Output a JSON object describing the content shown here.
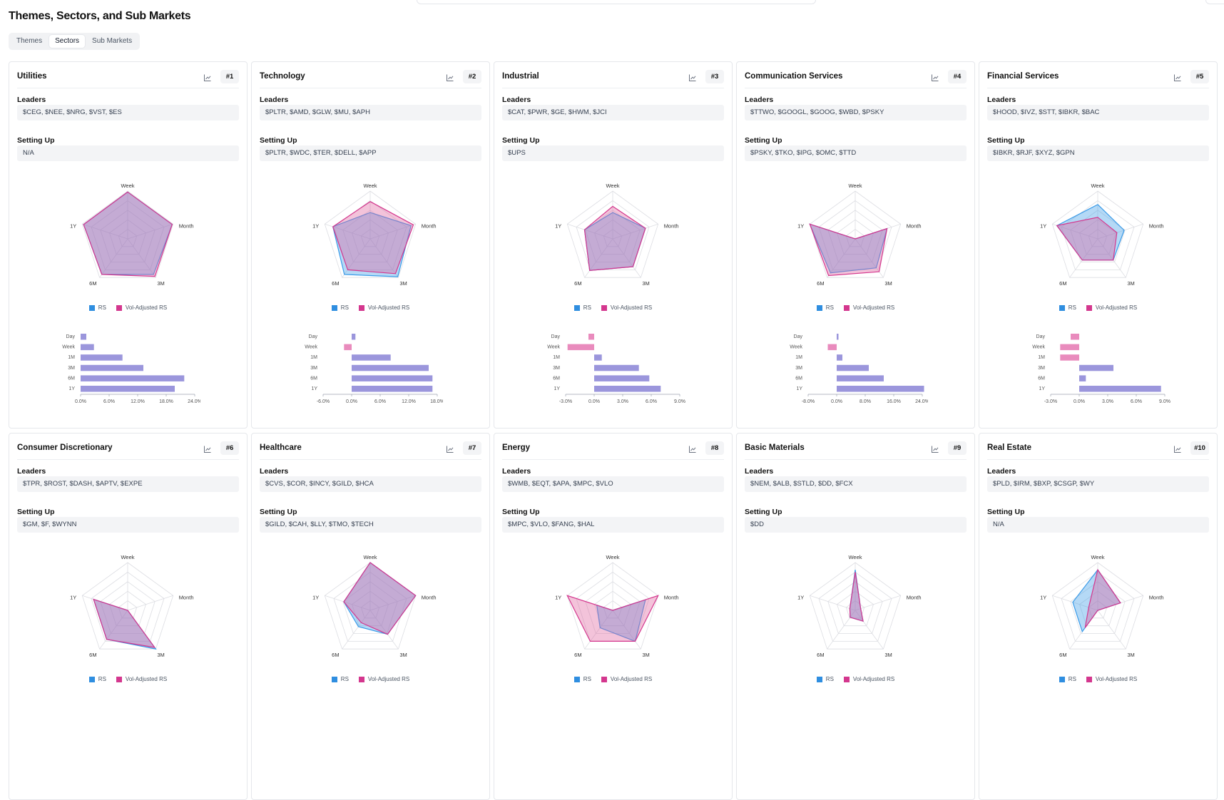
{
  "page": {
    "title": "Themes, Sectors, and Sub Markets",
    "tabs": [
      {
        "label": "Themes",
        "active": false
      },
      {
        "label": "Sectors",
        "active": true
      },
      {
        "label": "Sub Markets",
        "active": false
      }
    ]
  },
  "labels": {
    "leaders": "Leaders",
    "setting_up": "Setting Up"
  },
  "legend": {
    "rs": "RS",
    "vol_adjusted_rs": "Vol-Adjusted RS"
  },
  "colors": {
    "rs": "#2f8ee0",
    "vol_adjusted_rs": "#d4378e",
    "bar_positive": "#9b96dc",
    "bar_negative": "#e98bbd"
  },
  "icons": {
    "chart_toggle": "line-chart-icon"
  },
  "chart_data": {
    "type": "radar+bar",
    "radar_axes": [
      "Week",
      "Month",
      "3M",
      "6M",
      "1Y"
    ],
    "bar_categories": [
      "Day",
      "Week",
      "1M",
      "3M",
      "6M",
      "1Y"
    ],
    "sectors": [
      {
        "name": "Utilities",
        "rank": "#1",
        "leaders": "$CEG, $NEE, $NRG, $VST, $ES",
        "setting_up": "N/A",
        "rs": [
          0.98,
          0.98,
          0.92,
          0.92,
          0.97
        ],
        "vol": [
          0.98,
          0.98,
          0.97,
          0.92,
          0.97
        ],
        "bars": [
          1.2,
          2.8,
          8.8,
          13.2,
          21.8,
          19.8
        ],
        "ticks": [
          "0.0%",
          "6.0%",
          "12.0%",
          "18.0%",
          "24.0%"
        ],
        "xmin": 0,
        "xmax": 24
      },
      {
        "name": "Technology",
        "rank": "#2",
        "leaders": "$PLTR, $AMD, $GLW, $MU, $APH",
        "setting_up": "$PLTR, $WDC, $TER, $DELL, $APP",
        "rs": [
          0.55,
          0.9,
          0.98,
          0.92,
          0.82
        ],
        "vol": [
          0.78,
          0.95,
          0.9,
          0.8,
          0.82
        ],
        "bars": [
          0.8,
          -1.6,
          8.2,
          16.2,
          17.0,
          17.0
        ],
        "ticks": [
          "-6.0%",
          "0.0%",
          "6.0%",
          "12.0%",
          "18.0%"
        ],
        "xmin": -6,
        "xmax": 18
      },
      {
        "name": "Industrial",
        "rank": "#3",
        "leaders": "$CAT, $PWR, $GE, $HWM, $JCI",
        "setting_up": "$UPS",
        "rs": [
          0.55,
          0.72,
          0.72,
          0.82,
          0.62
        ],
        "vol": [
          0.68,
          0.72,
          0.72,
          0.82,
          0.62
        ],
        "bars": [
          -0.6,
          -2.8,
          0.8,
          4.7,
          5.8,
          7.0
        ],
        "ticks": [
          "-3.0%",
          "0.0%",
          "3.0%",
          "6.0%",
          "9.0%"
        ],
        "xmin": -3,
        "xmax": 9
      },
      {
        "name": "Communication Services",
        "rank": "#4",
        "leaders": "$TTWO, $GOOGL, $GOOG, $WBD, $PSKY",
        "setting_up": "$PSKY, $TKO, $IPG, $OMC, $TTD",
        "rs": [
          0.0,
          0.7,
          0.75,
          0.88,
          1.0
        ],
        "vol": [
          0.0,
          0.7,
          0.85,
          0.95,
          1.0
        ],
        "bars": [
          0.5,
          -2.5,
          1.6,
          9.0,
          13.2,
          24.5
        ],
        "ticks": [
          "-8.0%",
          "0.0%",
          "8.0%",
          "16.0%",
          "24.0%"
        ],
        "xmin": -8,
        "xmax": 24
      },
      {
        "name": "Financial Services",
        "rank": "#5",
        "leaders": "$HOOD, $IVZ, $STT, $IBKR, $BAC",
        "setting_up": "$IBKR, $RJF, $XYZ, $GPN",
        "rs": [
          0.72,
          0.58,
          0.55,
          0.55,
          0.9
        ],
        "vol": [
          0.45,
          0.42,
          0.55,
          0.55,
          0.9
        ],
        "bars": [
          -0.9,
          -2.0,
          -2.0,
          3.6,
          0.7,
          8.6
        ],
        "ticks": [
          "-3.0%",
          "0.0%",
          "3.0%",
          "6.0%",
          "9.0%"
        ],
        "xmin": -3,
        "xmax": 9
      },
      {
        "name": "Consumer Discretionary",
        "rank": "#6",
        "leaders": "$TPR, $ROST, $DASH, $APTV, $EXPE",
        "setting_up": "$GM, $F, $WYNN",
        "rs": [
          0.0,
          0.0,
          1.0,
          0.75,
          0.75
        ],
        "vol": [
          0.0,
          0.0,
          0.96,
          0.75,
          0.75
        ]
      },
      {
        "name": "Healthcare",
        "rank": "#7",
        "leaders": "$CVS, $COR, $INCY, $GILD, $HCA",
        "setting_up": "$GILD, $CAH, $LLY, $TMO, $TECH",
        "rs": [
          1.0,
          1.0,
          0.62,
          0.42,
          0.58
        ],
        "vol": [
          1.0,
          1.0,
          0.62,
          0.32,
          0.58
        ]
      },
      {
        "name": "Energy",
        "rank": "#8",
        "leaders": "$WMB, $EQT, $APA, $MPC, $VLO",
        "setting_up": "$MPC, $VLO, $FANG, $HAL",
        "rs": [
          0.0,
          0.72,
          0.8,
          0.45,
          0.35
        ],
        "vol": [
          0.0,
          1.0,
          0.8,
          0.8,
          1.0
        ]
      },
      {
        "name": "Basic Materials",
        "rank": "#9",
        "leaders": "$NEM, $ALB, $STLD, $DD, $FCX",
        "setting_up": "$DD",
        "rs": [
          0.85,
          0.12,
          0.28,
          0.18,
          0.12
        ],
        "vol": [
          0.8,
          0.12,
          0.28,
          0.18,
          0.12
        ]
      },
      {
        "name": "Real Estate",
        "rank": "#10",
        "leaders": "$PLD, $IRM, $BXP, $CSGP, $WY",
        "setting_up": "N/A",
        "rs": [
          0.85,
          0.5,
          0.0,
          0.55,
          0.55
        ],
        "vol": [
          0.85,
          0.5,
          0.0,
          0.45,
          0.2
        ]
      }
    ]
  }
}
